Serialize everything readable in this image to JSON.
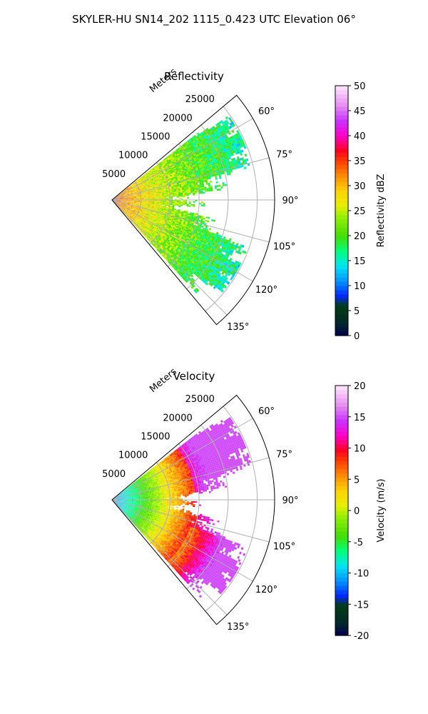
{
  "figure": {
    "suptitle": "SKYLER-HU  SN14_202  1115_0.423 UTC Elevation 06°"
  },
  "chart_data": [
    {
      "type": "polar-sector",
      "title": "Reflectivity",
      "radial_label": "Meters",
      "radial_ticks": [
        "5000",
        "10000",
        "15000",
        "20000",
        "25000"
      ],
      "radial_tick_values": [
        5000,
        10000,
        15000,
        20000,
        25000
      ],
      "rlim": [
        0,
        28000
      ],
      "azimuth_ticks": [
        "60°",
        "75°",
        "90°",
        "105°",
        "120°",
        "135°"
      ],
      "azimuth_tick_values": [
        60,
        75,
        90,
        105,
        120,
        135
      ],
      "azimuth_range": [
        50,
        140
      ],
      "grid": true,
      "colorbar": {
        "label": "Reflectivity dBZ",
        "ticks": [
          "0",
          "5",
          "10",
          "15",
          "20",
          "25",
          "30",
          "35",
          "40",
          "45",
          "50"
        ],
        "range": [
          0,
          50
        ]
      },
      "field_summary": {
        "near_range_0_5000m": "red/orange 30-40 dBZ",
        "mid_range_5000_18000m": "yellow to green 18-28 dBZ",
        "far_range": "green 15-22 dBZ, sparse"
      }
    },
    {
      "type": "polar-sector",
      "title": "Velocity",
      "radial_label": "Meters",
      "radial_ticks": [
        "5000",
        "10000",
        "15000",
        "20000",
        "25000"
      ],
      "radial_tick_values": [
        5000,
        10000,
        15000,
        20000,
        25000
      ],
      "rlim": [
        0,
        28000
      ],
      "azimuth_ticks": [
        "60°",
        "75°",
        "90°",
        "105°",
        "120°",
        "135°"
      ],
      "azimuth_tick_values": [
        60,
        75,
        90,
        105,
        120,
        135
      ],
      "azimuth_range": [
        50,
        140
      ],
      "grid": true,
      "colorbar": {
        "label": "Velocity (m/s)",
        "ticks": [
          "-20",
          "-15",
          "-10",
          "-5",
          "0",
          "5",
          "10",
          "15",
          "20"
        ],
        "range": [
          -20,
          20
        ]
      },
      "field_summary": {
        "near_range_0_3000m": "cyan about -10 m/s",
        "range_3000_9000m": "green -7 to -3 m/s",
        "range_9000_15000m": "yellow/orange 0 to 7 m/s",
        "far_range_north": "magenta 12-15 m/s",
        "far_range_south": "red/orange 8-12 m/s"
      }
    }
  ]
}
